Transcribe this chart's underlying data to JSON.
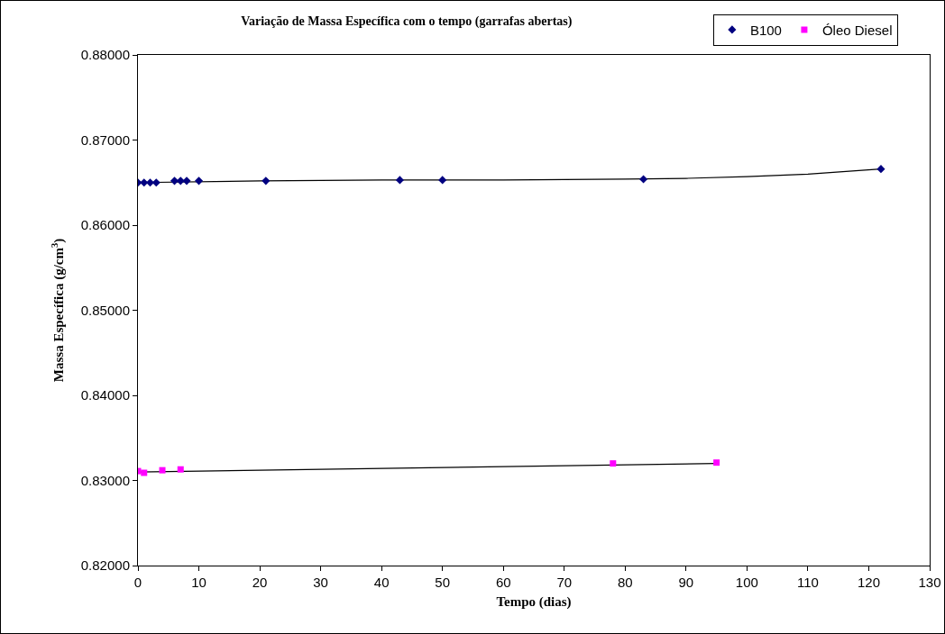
{
  "chart_data": {
    "type": "scatter",
    "title": "Variação de Massa Específica com o tempo (garrafas abertas)",
    "xlabel": "Tempo (dias)",
    "ylabel": "Massa Específica (g/cm$^{3}$)",
    "series": [
      {
        "name": "B100",
        "color": "#000080",
        "marker": "diamond",
        "x": [
          0,
          1,
          2,
          3,
          6,
          7,
          8,
          10,
          21,
          43,
          50,
          83,
          122
        ],
        "values": [
          0.865,
          0.865,
          0.865,
          0.865,
          0.8652,
          0.8652,
          0.8652,
          0.8652,
          0.8652,
          0.8653,
          0.8653,
          0.8654,
          0.8666
        ]
      },
      {
        "name": "Óleo Diesel",
        "color": "#ff00ff",
        "marker": "square",
        "x": [
          0,
          1,
          4,
          7,
          78,
          95
        ],
        "values": [
          0.8311,
          0.8309,
          0.8312,
          0.8313,
          0.832,
          0.8321
        ]
      },
      {
        "type": "line",
        "color": "#000000",
        "x": [
          0,
          20,
          40,
          60,
          80,
          90,
          100,
          110,
          122
        ],
        "values": [
          0.865,
          0.8652,
          0.8653,
          0.8653,
          0.8654,
          0.8655,
          0.8657,
          0.866,
          0.8666
        ]
      },
      {
        "type": "line",
        "color": "#000000",
        "x": [
          0,
          95
        ],
        "values": [
          0.831,
          0.832
        ]
      }
    ],
    "xlim": [
      0,
      130
    ],
    "xticks": [
      0,
      10,
      20,
      30,
      40,
      50,
      60,
      70,
      80,
      90,
      100,
      110,
      120,
      130
    ],
    "ylim": [
      0.82,
      0.88
    ],
    "yticks": [
      {
        "value": 0.82,
        "label": "0.82000"
      },
      {
        "value": 0.83,
        "label": "0.83000"
      },
      {
        "value": 0.84,
        "label": "0.84000"
      },
      {
        "value": 0.85,
        "label": "0.85000"
      },
      {
        "value": 0.86,
        "label": "0.86000"
      },
      {
        "value": 0.87,
        "label": "0.87000"
      },
      {
        "value": 0.88,
        "label": "0.88000"
      }
    ],
    "grid": false,
    "legend": "top right"
  }
}
